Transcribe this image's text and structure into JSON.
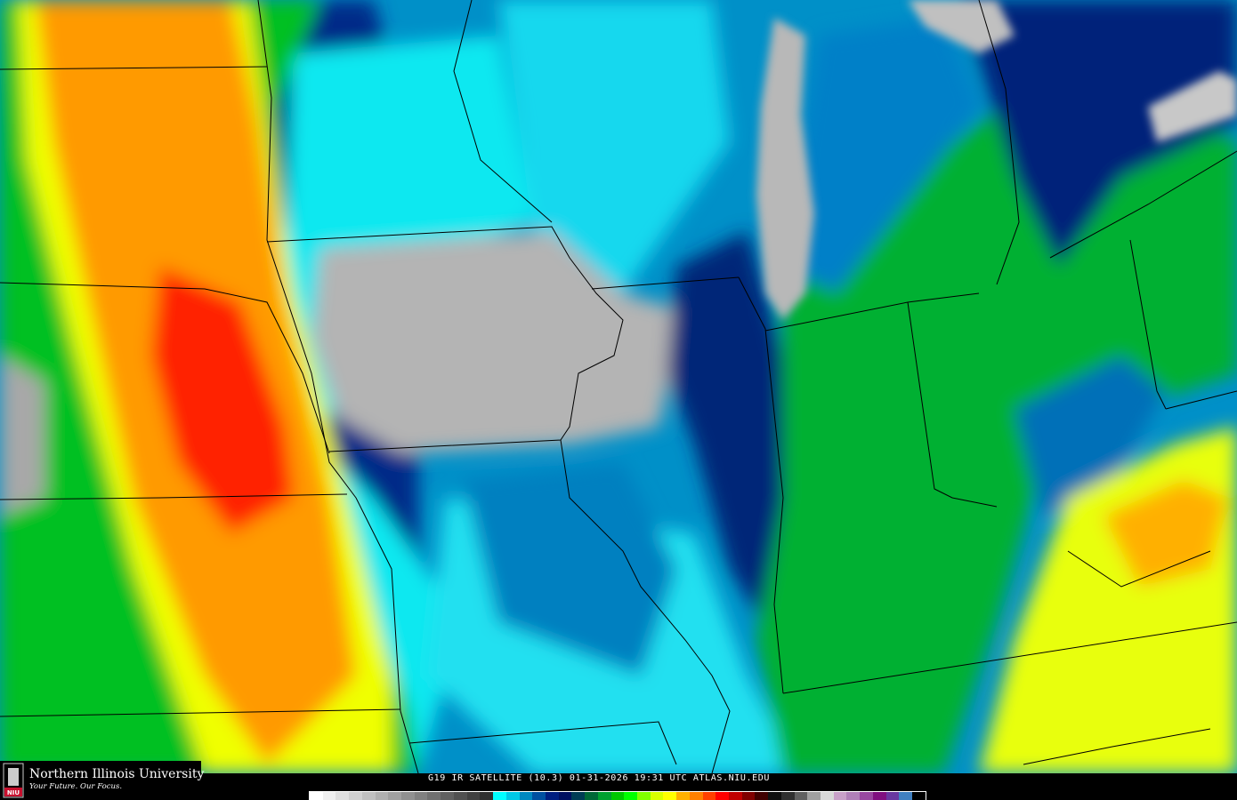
{
  "logo": {
    "university": "Northern Illinois University",
    "tagline": "Your Future. Our Focus.",
    "badge": "NIU"
  },
  "caption": "G19 IR SATELLITE (10.3) 01-31-2026 19:31 UTC  ATLAS.NIU.EDU",
  "colorbar": {
    "colors": [
      "#ffffff",
      "#f0f0f0",
      "#e0e0e0",
      "#d0d0d0",
      "#c0c0c0",
      "#b0b0b0",
      "#a0a0a0",
      "#909090",
      "#808080",
      "#707070",
      "#606060",
      "#505050",
      "#404040",
      "#303030",
      "#00ffff",
      "#00c8e6",
      "#0088c0",
      "#0050a0",
      "#001e80",
      "#001060",
      "#003c55",
      "#006837",
      "#00a030",
      "#00c800",
      "#00ff00",
      "#80ff00",
      "#d8ff00",
      "#ffff00",
      "#ffb000",
      "#ff8000",
      "#ff4000",
      "#ff0000",
      "#c00000",
      "#800000",
      "#400000",
      "#101010",
      "#303030",
      "#606060",
      "#a0a0a0",
      "#d8d8d8",
      "#c8a0c8",
      "#b080b8",
      "#9848a0",
      "#801080",
      "#6838a0",
      "#4080c0",
      "#000000"
    ]
  },
  "map_colors": {
    "cold_cloud_red": "#ff0000",
    "orange": "#ff9000",
    "yellow": "#ffff00",
    "green": "#00b830",
    "cyan": "#00ffff",
    "blue": "#0088c8",
    "navy": "#002080",
    "clear_gray": "#b0b0b0"
  }
}
